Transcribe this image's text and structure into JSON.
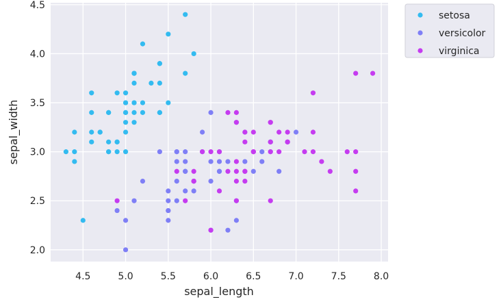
{
  "chart_data": {
    "type": "scatter",
    "xlabel": "sepal_length",
    "ylabel": "sepal_width",
    "xlim": [
      4.12,
      8.08
    ],
    "ylim": [
      1.88,
      4.52
    ],
    "xticks": [
      4.5,
      5.0,
      5.5,
      6.0,
      6.5,
      7.0,
      7.5,
      8.0
    ],
    "xtick_labels": [
      "4.5",
      "5.0",
      "5.5",
      "6.0",
      "6.5",
      "7.0",
      "7.5",
      "8.0"
    ],
    "yticks": [
      2.0,
      2.5,
      3.0,
      3.5,
      4.0,
      4.5
    ],
    "ytick_labels": [
      "2.0",
      "2.5",
      "3.0",
      "3.5",
      "4.0",
      "4.5"
    ],
    "grid": true,
    "background": "#eaeaf2",
    "legend_position": "outside-top-right",
    "series": [
      {
        "name": "setosa",
        "color": "#33bbf0",
        "points": [
          [
            5.1,
            3.5
          ],
          [
            4.9,
            3.0
          ],
          [
            4.7,
            3.2
          ],
          [
            4.6,
            3.1
          ],
          [
            5.0,
            3.6
          ],
          [
            5.4,
            3.9
          ],
          [
            4.6,
            3.4
          ],
          [
            5.0,
            3.4
          ],
          [
            4.4,
            2.9
          ],
          [
            4.9,
            3.1
          ],
          [
            5.4,
            3.7
          ],
          [
            4.8,
            3.4
          ],
          [
            4.8,
            3.0
          ],
          [
            4.3,
            3.0
          ],
          [
            5.8,
            4.0
          ],
          [
            5.7,
            4.4
          ],
          [
            5.4,
            3.9
          ],
          [
            5.1,
            3.5
          ],
          [
            5.7,
            3.8
          ],
          [
            5.1,
            3.8
          ],
          [
            5.4,
            3.4
          ],
          [
            5.1,
            3.7
          ],
          [
            4.6,
            3.6
          ],
          [
            5.1,
            3.3
          ],
          [
            4.8,
            3.4
          ],
          [
            5.0,
            3.0
          ],
          [
            5.0,
            3.4
          ],
          [
            5.2,
            3.5
          ],
          [
            5.2,
            3.4
          ],
          [
            4.7,
            3.2
          ],
          [
            4.8,
            3.1
          ],
          [
            5.4,
            3.4
          ],
          [
            5.2,
            4.1
          ],
          [
            5.5,
            4.2
          ],
          [
            4.9,
            3.1
          ],
          [
            5.0,
            3.2
          ],
          [
            5.5,
            3.5
          ],
          [
            4.9,
            3.6
          ],
          [
            4.4,
            3.0
          ],
          [
            5.1,
            3.4
          ],
          [
            5.0,
            3.5
          ],
          [
            4.5,
            2.3
          ],
          [
            4.4,
            3.2
          ],
          [
            5.0,
            3.5
          ],
          [
            5.1,
            3.8
          ],
          [
            4.8,
            3.0
          ],
          [
            5.1,
            3.8
          ],
          [
            4.6,
            3.2
          ],
          [
            5.3,
            3.7
          ],
          [
            5.0,
            3.3
          ]
        ]
      },
      {
        "name": "versicolor",
        "color": "#7f7ff6",
        "points": [
          [
            7.0,
            3.2
          ],
          [
            6.4,
            3.2
          ],
          [
            6.9,
            3.1
          ],
          [
            5.5,
            2.3
          ],
          [
            6.5,
            2.8
          ],
          [
            5.7,
            2.8
          ],
          [
            6.3,
            3.3
          ],
          [
            4.9,
            2.4
          ],
          [
            6.6,
            2.9
          ],
          [
            5.2,
            2.7
          ],
          [
            5.0,
            2.0
          ],
          [
            5.9,
            3.0
          ],
          [
            6.0,
            2.2
          ],
          [
            6.1,
            2.9
          ],
          [
            5.6,
            2.9
          ],
          [
            6.7,
            3.1
          ],
          [
            5.6,
            3.0
          ],
          [
            5.8,
            2.7
          ],
          [
            6.2,
            2.2
          ],
          [
            5.6,
            2.5
          ],
          [
            5.9,
            3.2
          ],
          [
            6.1,
            2.8
          ],
          [
            6.3,
            2.5
          ],
          [
            6.1,
            2.8
          ],
          [
            6.4,
            2.9
          ],
          [
            6.6,
            3.0
          ],
          [
            6.8,
            2.8
          ],
          [
            6.7,
            3.0
          ],
          [
            6.0,
            2.9
          ],
          [
            5.7,
            2.6
          ],
          [
            5.5,
            2.4
          ],
          [
            5.5,
            2.4
          ],
          [
            5.8,
            2.7
          ],
          [
            6.0,
            2.7
          ],
          [
            5.4,
            3.0
          ],
          [
            6.0,
            3.4
          ],
          [
            6.7,
            3.1
          ],
          [
            6.3,
            2.3
          ],
          [
            5.6,
            3.0
          ],
          [
            5.5,
            2.5
          ],
          [
            5.5,
            2.6
          ],
          [
            6.1,
            3.0
          ],
          [
            5.8,
            2.6
          ],
          [
            5.0,
            2.3
          ],
          [
            5.6,
            2.7
          ],
          [
            5.7,
            3.0
          ],
          [
            5.7,
            2.9
          ],
          [
            6.2,
            2.9
          ],
          [
            5.1,
            2.5
          ],
          [
            5.7,
            2.8
          ]
        ]
      },
      {
        "name": "virginica",
        "color": "#c53cf0",
        "points": [
          [
            6.3,
            3.3
          ],
          [
            5.8,
            2.7
          ],
          [
            7.1,
            3.0
          ],
          [
            6.3,
            2.9
          ],
          [
            6.5,
            3.0
          ],
          [
            7.6,
            3.0
          ],
          [
            4.9,
            2.5
          ],
          [
            7.3,
            2.9
          ],
          [
            6.7,
            2.5
          ],
          [
            7.2,
            3.6
          ],
          [
            6.5,
            3.2
          ],
          [
            6.4,
            2.7
          ],
          [
            6.8,
            3.0
          ],
          [
            5.7,
            2.5
          ],
          [
            5.8,
            2.8
          ],
          [
            6.4,
            3.2
          ],
          [
            6.5,
            3.0
          ],
          [
            7.7,
            3.8
          ],
          [
            7.7,
            2.6
          ],
          [
            6.0,
            2.2
          ],
          [
            6.9,
            3.2
          ],
          [
            5.6,
            2.8
          ],
          [
            7.7,
            2.8
          ],
          [
            6.3,
            2.7
          ],
          [
            6.7,
            3.3
          ],
          [
            7.2,
            3.2
          ],
          [
            6.2,
            2.8
          ],
          [
            6.1,
            3.0
          ],
          [
            6.4,
            2.8
          ],
          [
            7.2,
            3.0
          ],
          [
            7.4,
            2.8
          ],
          [
            7.9,
            3.8
          ],
          [
            6.4,
            2.8
          ],
          [
            6.3,
            2.8
          ],
          [
            6.1,
            2.6
          ],
          [
            7.7,
            3.0
          ],
          [
            6.3,
            3.4
          ],
          [
            6.4,
            3.1
          ],
          [
            6.0,
            3.0
          ],
          [
            6.9,
            3.1
          ],
          [
            6.7,
            3.1
          ],
          [
            6.9,
            3.1
          ],
          [
            5.8,
            2.7
          ],
          [
            6.8,
            3.2
          ],
          [
            6.7,
            3.3
          ],
          [
            6.7,
            3.0
          ],
          [
            6.3,
            2.5
          ],
          [
            6.5,
            3.0
          ],
          [
            6.2,
            3.4
          ],
          [
            5.9,
            3.0
          ]
        ]
      }
    ]
  }
}
